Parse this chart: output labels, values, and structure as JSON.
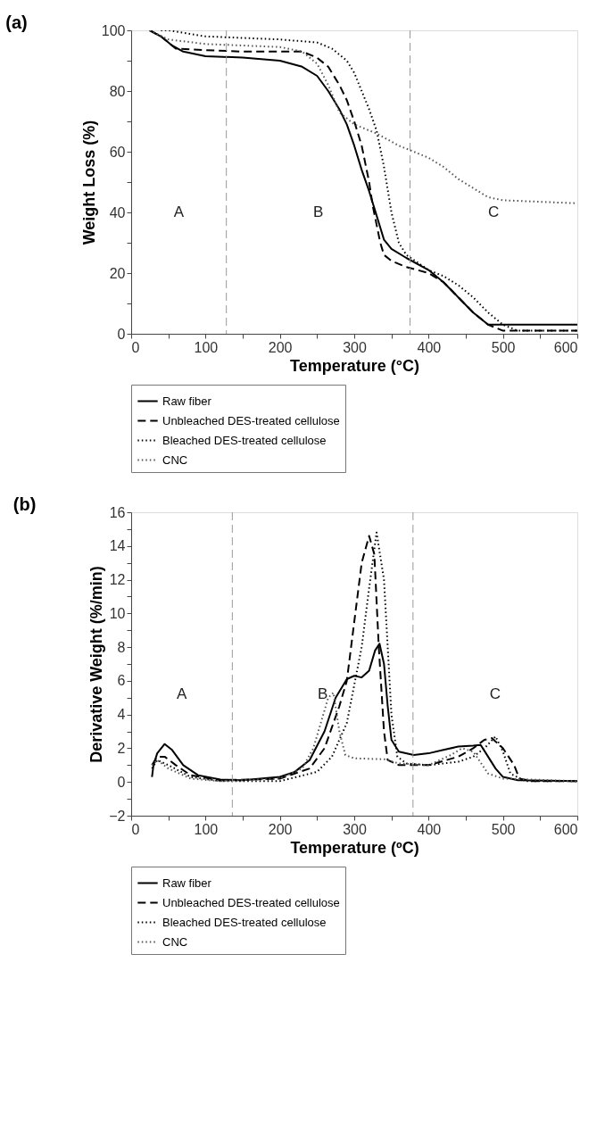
{
  "chart_data": [
    {
      "type": "line",
      "title": "(a)",
      "xlabel": "Temperature (°C)",
      "ylabel": "Weight Loss (%)",
      "xlim": [
        0,
        600
      ],
      "ylim": [
        0,
        100
      ],
      "xticks": [
        0,
        {
          "value": 50,
          "label": null
        },
        100,
        {
          "value": 150,
          "label": null
        },
        200,
        {
          "value": 250,
          "label": null
        },
        300,
        {
          "value": 350,
          "label": null
        },
        400,
        {
          "value": 450,
          "label": null
        },
        500,
        {
          "value": 550,
          "label": null
        },
        600
      ],
      "yticks": [
        0,
        {
          "value": 10,
          "label": null
        },
        20,
        {
          "value": 30,
          "label": null
        },
        40,
        {
          "value": 50,
          "label": null
        },
        60,
        {
          "value": 70,
          "label": null
        },
        80,
        {
          "value": 90,
          "label": null
        },
        100
      ],
      "grid": false,
      "legend": "bottom",
      "series": [
        {
          "name": "Raw fiber",
          "color": "#000000",
          "line_style": "solid",
          "x": [
            25,
            40,
            55,
            70,
            100,
            150,
            200,
            230,
            250,
            265,
            280,
            290,
            300,
            310,
            320,
            330,
            340,
            350,
            370,
            400,
            420,
            440,
            460,
            480,
            490,
            500,
            600
          ],
          "values": [
            100,
            98,
            95,
            93,
            91.5,
            91,
            90,
            88,
            85,
            80,
            74,
            69,
            62,
            54,
            47,
            39,
            31,
            28,
            25,
            21,
            17,
            12,
            7,
            3,
            3,
            3,
            3
          ]
        },
        {
          "name": "Unbleached DES-treated cellulose",
          "color": "#000000",
          "line_style": "dashed",
          "x": [
            25,
            40,
            60,
            100,
            150,
            200,
            230,
            250,
            265,
            280,
            290,
            300,
            310,
            320,
            325,
            330,
            335,
            340,
            350,
            370,
            400,
            420,
            440,
            460,
            480,
            500,
            520,
            600
          ],
          "values": [
            100,
            98,
            94,
            93.5,
            93,
            93,
            93,
            91,
            88,
            82,
            77,
            70,
            62,
            50,
            42,
            36,
            30,
            26,
            24,
            22,
            20,
            17,
            12,
            7,
            3,
            1,
            1,
            1
          ]
        },
        {
          "name": "Bleached DES-treated cellulose",
          "color": "#000000",
          "line_style": "dotted",
          "x": [
            40,
            50,
            100,
            150,
            200,
            250,
            270,
            290,
            300,
            310,
            320,
            330,
            340,
            350,
            360,
            370,
            400,
            420,
            440,
            460,
            480,
            500,
            520,
            600
          ],
          "values": [
            100,
            100,
            98,
            97.5,
            97,
            96,
            94,
            90,
            86,
            80,
            74,
            67,
            55,
            40,
            30,
            26,
            21,
            19,
            16,
            12,
            7,
            3,
            1,
            1
          ]
        },
        {
          "name": "CNC",
          "color": "#555555",
          "line_style": "dotted",
          "x": [
            25,
            50,
            100,
            150,
            200,
            230,
            250,
            265,
            280,
            300,
            330,
            360,
            400,
            420,
            440,
            460,
            480,
            500,
            550,
            600
          ],
          "values": [
            100,
            97,
            95.5,
            95,
            94.5,
            93,
            89,
            82,
            73,
            69,
            66,
            62,
            58,
            55,
            51,
            48,
            45,
            44,
            43.5,
            43
          ]
        }
      ],
      "ref_lines": [
        {
          "axis": "x",
          "value": 128,
          "color": "#999999",
          "line_style": "dashed"
        },
        {
          "axis": "x",
          "value": 375,
          "color": "#999999",
          "line_style": "dashed"
        }
      ],
      "annotations": [
        "A",
        "B",
        "C"
      ]
    },
    {
      "type": "line",
      "title": "(b)",
      "xlabel": "Temperature (ºC)",
      "ylabel": "Derivative Weight (%/min)",
      "xlim": [
        0,
        600
      ],
      "ylim": [
        -2,
        16
      ],
      "xticks": [
        0,
        {
          "value": 50,
          "label": null
        },
        100,
        {
          "value": 150,
          "label": null
        },
        200,
        {
          "value": 250,
          "label": null
        },
        300,
        {
          "value": 350,
          "label": null
        },
        400,
        {
          "value": 450,
          "label": null
        },
        500,
        {
          "value": 550,
          "label": null
        },
        600
      ],
      "yticks": [
        -2,
        {
          "value": -1,
          "label": null
        },
        0,
        {
          "value": 1,
          "label": null
        },
        2,
        {
          "value": 3,
          "label": null
        },
        4,
        {
          "value": 5,
          "label": null
        },
        6,
        {
          "value": 7,
          "label": null
        },
        8,
        {
          "value": 9,
          "label": null
        },
        10,
        {
          "value": 11,
          "label": null
        },
        12,
        {
          "value": 13,
          "label": null
        },
        14,
        {
          "value": 15,
          "label": null
        },
        16
      ],
      "grid": false,
      "legend": "bottom",
      "series": [
        {
          "name": "Raw fiber",
          "color": "#000000",
          "line_style": "solid",
          "x": [
            28,
            30,
            35,
            45,
            55,
            70,
            90,
            120,
            150,
            200,
            220,
            240,
            260,
            275,
            290,
            300,
            310,
            320,
            328,
            334,
            340,
            345,
            350,
            360,
            380,
            400,
            420,
            440,
            460,
            470,
            480,
            490,
            500,
            520,
            600
          ],
          "values": [
            0.3,
            1.0,
            1.7,
            2.25,
            1.9,
            1.0,
            0.4,
            0.15,
            0.1,
            0.3,
            0.6,
            1.3,
            3.0,
            5.0,
            6.1,
            6.3,
            6.2,
            6.6,
            7.8,
            8.2,
            7.0,
            4.5,
            2.5,
            1.8,
            1.6,
            1.7,
            1.9,
            2.1,
            2.15,
            2.2,
            1.5,
            0.8,
            0.3,
            0.1,
            0.05
          ]
        },
        {
          "name": "Unbleached DES-treated cellulose",
          "color": "#000000",
          "line_style": "dashed",
          "x": [
            28,
            35,
            45,
            60,
            80,
            120,
            200,
            240,
            260,
            280,
            290,
            300,
            310,
            320,
            327,
            333,
            340,
            345,
            360,
            400,
            440,
            460,
            475,
            485,
            500,
            515,
            522,
            540,
            600
          ],
          "values": [
            1.0,
            1.5,
            1.5,
            1.0,
            0.4,
            0.1,
            0.2,
            0.8,
            2.0,
            4.5,
            6.0,
            9.5,
            13.0,
            14.6,
            13.5,
            8.0,
            3.0,
            1.3,
            1.0,
            1.0,
            1.5,
            2.0,
            2.5,
            2.6,
            2.0,
            1.0,
            0.2,
            0.05,
            0.05
          ]
        },
        {
          "name": "Bleached DES-treated cellulose",
          "color": "#000000",
          "line_style": "dotted",
          "x": [
            28,
            35,
            50,
            80,
            120,
            200,
            250,
            270,
            290,
            310,
            320,
            330,
            340,
            350,
            358,
            370,
            400,
            440,
            460,
            475,
            490,
            500,
            510,
            530,
            600
          ],
          "values": [
            0.8,
            1.3,
            1.0,
            0.3,
            0.05,
            0.05,
            0.6,
            1.5,
            3.5,
            8.0,
            11.5,
            14.8,
            12.0,
            4.0,
            1.5,
            1.1,
            1.0,
            1.2,
            1.5,
            2.0,
            2.7,
            1.8,
            0.5,
            0.05,
            0.05
          ]
        },
        {
          "name": "CNC",
          "color": "#555555",
          "line_style": "dotted",
          "x": [
            28,
            35,
            50,
            80,
            120,
            200,
            230,
            245,
            255,
            265,
            272,
            280,
            288,
            300,
            340,
            360,
            400,
            430,
            445,
            460,
            480,
            500,
            600
          ],
          "values": [
            1.0,
            1.3,
            0.8,
            0.2,
            0.05,
            0.2,
            0.8,
            2.0,
            3.5,
            5.0,
            5.3,
            3.0,
            1.6,
            1.4,
            1.35,
            1.1,
            1.0,
            1.6,
            2.0,
            1.8,
            0.5,
            0.2,
            0.05
          ]
        }
      ],
      "ref_lines": [
        {
          "axis": "x",
          "value": 136,
          "color": "#999999",
          "line_style": "dashed"
        },
        {
          "axis": "x",
          "value": 379,
          "color": "#999999",
          "line_style": "dashed"
        }
      ],
      "annotations": [
        "A",
        "B",
        "C"
      ]
    }
  ]
}
